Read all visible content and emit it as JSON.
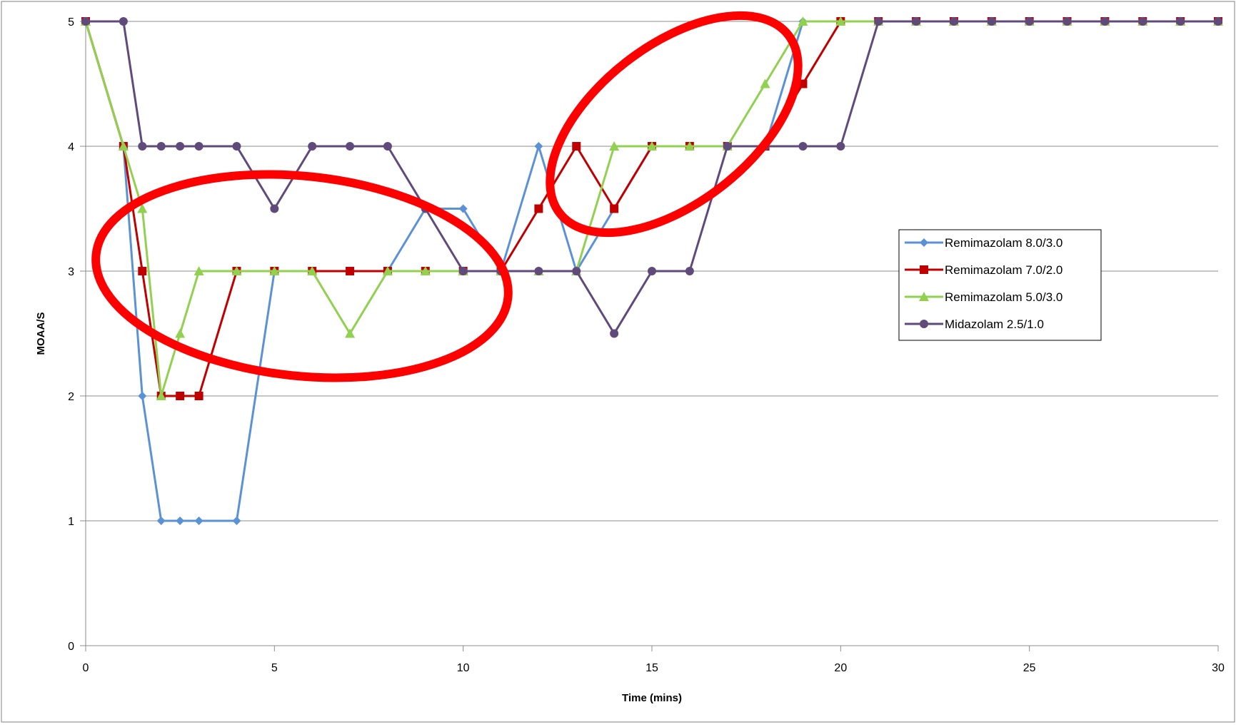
{
  "chart_data": {
    "type": "line",
    "title": "",
    "xlabel": "Time (mins)",
    "ylabel": "MOAA/S",
    "xlim": [
      0,
      30
    ],
    "ylim": [
      0,
      5
    ],
    "xticks": [
      0,
      5,
      10,
      15,
      20,
      25,
      30
    ],
    "yticks": [
      0,
      1,
      2,
      3,
      4,
      5
    ],
    "grid": "horizontal",
    "legend_position": "right",
    "series": [
      {
        "name": "Remimazolam 8.0/3.0",
        "color": "#5b92d6",
        "marker": "diamond",
        "points": [
          [
            0,
            5
          ],
          [
            1,
            4
          ],
          [
            1.5,
            2
          ],
          [
            2,
            1
          ],
          [
            2.5,
            1
          ],
          [
            3,
            1
          ],
          [
            4,
            1
          ],
          [
            5,
            3
          ],
          [
            6,
            3
          ],
          [
            7,
            3
          ],
          [
            8,
            3
          ],
          [
            9,
            3.5
          ],
          [
            10,
            3.5
          ],
          [
            11,
            3
          ],
          [
            12,
            4
          ],
          [
            13,
            3
          ],
          [
            14,
            3.5
          ],
          [
            15,
            4
          ],
          [
            16,
            4
          ],
          [
            17,
            4
          ],
          [
            18,
            4
          ],
          [
            19,
            5
          ],
          [
            20,
            5
          ],
          [
            21,
            5
          ],
          [
            22,
            5
          ],
          [
            23,
            5
          ],
          [
            24,
            5
          ],
          [
            25,
            5
          ],
          [
            26,
            5
          ],
          [
            27,
            5
          ],
          [
            28,
            5
          ],
          [
            29,
            5
          ],
          [
            30,
            5
          ]
        ]
      },
      {
        "name": "Remimazolam 7.0/2.0",
        "color": "#c00000",
        "marker": "square",
        "points": [
          [
            0,
            5
          ],
          [
            1,
            4
          ],
          [
            1.5,
            3
          ],
          [
            2,
            2
          ],
          [
            2.5,
            2
          ],
          [
            3,
            2
          ],
          [
            4,
            3
          ],
          [
            5,
            3
          ],
          [
            6,
            3
          ],
          [
            7,
            3
          ],
          [
            8,
            3
          ],
          [
            9,
            3
          ],
          [
            10,
            3
          ],
          [
            11,
            3
          ],
          [
            12,
            3.5
          ],
          [
            13,
            4
          ],
          [
            14,
            3.5
          ],
          [
            15,
            4
          ],
          [
            16,
            4
          ],
          [
            17,
            4
          ],
          [
            18,
            4
          ],
          [
            19,
            4.5
          ],
          [
            20,
            5
          ],
          [
            21,
            5
          ],
          [
            22,
            5
          ],
          [
            23,
            5
          ],
          [
            24,
            5
          ],
          [
            25,
            5
          ],
          [
            26,
            5
          ],
          [
            27,
            5
          ],
          [
            28,
            5
          ],
          [
            29,
            5
          ],
          [
            30,
            5
          ]
        ]
      },
      {
        "name": "Remimazolam 5.0/3.0",
        "color": "#92d050",
        "marker": "triangle",
        "points": [
          [
            0,
            5
          ],
          [
            1,
            4
          ],
          [
            1.5,
            3.5
          ],
          [
            2,
            2
          ],
          [
            2.5,
            2.5
          ],
          [
            3,
            3
          ],
          [
            4,
            3
          ],
          [
            5,
            3
          ],
          [
            6,
            3
          ],
          [
            7,
            2.5
          ],
          [
            8,
            3
          ],
          [
            9,
            3
          ],
          [
            10,
            3
          ],
          [
            11,
            3
          ],
          [
            12,
            3
          ],
          [
            13,
            3
          ],
          [
            14,
            4
          ],
          [
            15,
            4
          ],
          [
            16,
            4
          ],
          [
            17,
            4
          ],
          [
            18,
            4.5
          ],
          [
            19,
            5
          ],
          [
            20,
            5
          ],
          [
            21,
            5
          ],
          [
            22,
            5
          ],
          [
            23,
            5
          ],
          [
            24,
            5
          ],
          [
            25,
            5
          ],
          [
            26,
            5
          ],
          [
            27,
            5
          ],
          [
            28,
            5
          ],
          [
            29,
            5
          ],
          [
            30,
            5
          ]
        ]
      },
      {
        "name": "Midazolam 2.5/1.0",
        "color": "#604a7b",
        "marker": "circle",
        "points": [
          [
            0,
            5
          ],
          [
            1,
            5
          ],
          [
            1.5,
            4
          ],
          [
            2,
            4
          ],
          [
            2.5,
            4
          ],
          [
            3,
            4
          ],
          [
            4,
            4
          ],
          [
            5,
            3.5
          ],
          [
            6,
            4
          ],
          [
            7,
            4
          ],
          [
            8,
            4
          ],
          [
            9,
            3.5
          ],
          [
            10,
            3
          ],
          [
            11,
            3
          ],
          [
            12,
            3
          ],
          [
            13,
            3
          ],
          [
            14,
            2.5
          ],
          [
            15,
            3
          ],
          [
            16,
            3
          ],
          [
            17,
            4
          ],
          [
            18,
            4
          ],
          [
            19,
            4
          ],
          [
            20,
            4
          ],
          [
            21,
            5
          ],
          [
            22,
            5
          ],
          [
            23,
            5
          ],
          [
            24,
            5
          ],
          [
            25,
            5
          ],
          [
            26,
            5
          ],
          [
            27,
            5
          ],
          [
            28,
            5
          ],
          [
            29,
            5
          ],
          [
            30,
            5
          ]
        ]
      }
    ],
    "annotations": [
      {
        "shape": "ellipse",
        "color": "#ff0000",
        "around": "x 0.5–11.5, y 2.1–3.8"
      },
      {
        "shape": "ellipse",
        "color": "#ff0000",
        "around": "x 12.5–19.5, y 3.1–5.2"
      }
    ]
  }
}
